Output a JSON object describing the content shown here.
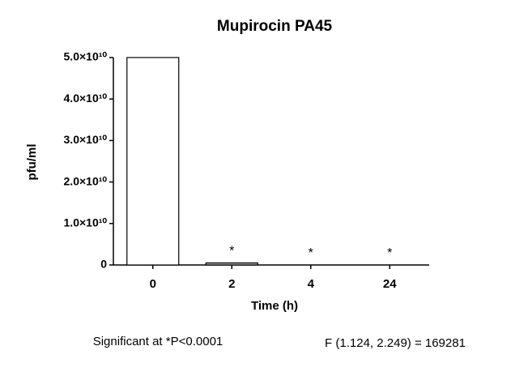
{
  "chart_data": {
    "type": "bar",
    "title": "Mupirocin PA45",
    "x_label": "Time (h)",
    "y_label": "pfu/ml",
    "categories": [
      "0",
      "2",
      "4",
      "24"
    ],
    "values": [
      50000000000,
      500000000,
      0,
      0
    ],
    "colors": [
      "#ffffff",
      "#b0b0b0",
      "#ffffff",
      "#ffffff"
    ],
    "significance_markers": [
      null,
      "*",
      "*",
      "*"
    ],
    "ylim": [
      0,
      50000000000
    ],
    "yticks": [
      0,
      {
        "value": 10000000000,
        "label": "1.0×10¹⁰"
      },
      {
        "value": 20000000000,
        "label": "2.0×10¹⁰"
      },
      {
        "value": 30000000000,
        "label": "3.0×10¹⁰"
      },
      {
        "value": 40000000000,
        "label": "4.0×10¹⁰"
      },
      {
        "value": 50000000000,
        "label": "5.0×10¹⁰"
      }
    ],
    "grid": false,
    "footnote": "Significant at *P<0.0001",
    "statistic": "F (1.124, 2.249) = 169281"
  }
}
